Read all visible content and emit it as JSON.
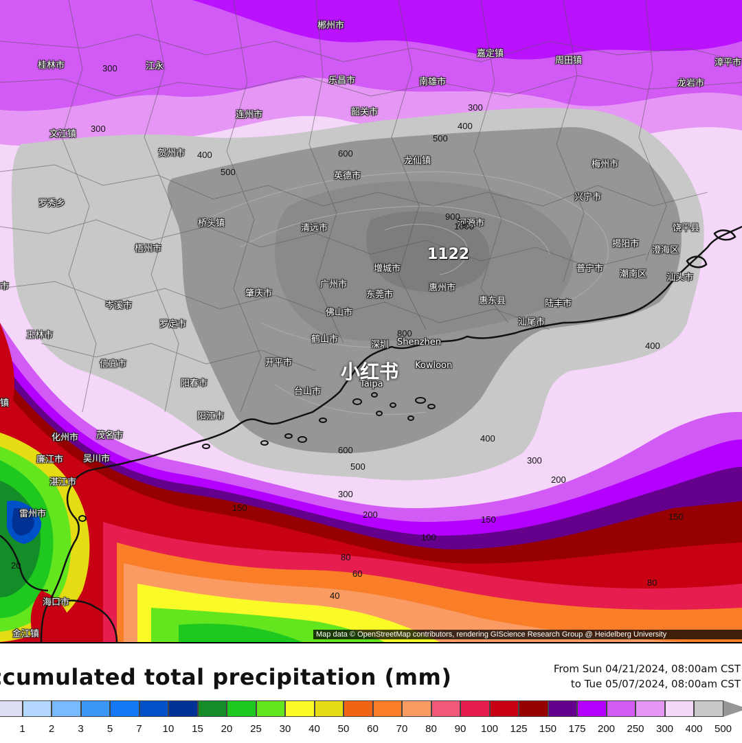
{
  "map": {
    "max_value_label": "1122",
    "watermark": "小红书",
    "attribution": "Map data © OpenStreetMap contributors, rendering GIScience Research Group @ Heidelberg University",
    "cities": [
      {
        "id": "c01",
        "name": "郴州市"
      },
      {
        "id": "c02",
        "name": "桂林市"
      },
      {
        "id": "c03",
        "name": "江永"
      },
      {
        "id": "c04",
        "name": "乐昌市"
      },
      {
        "id": "c05",
        "name": "南雄市"
      },
      {
        "id": "c06",
        "name": "嘉定镇"
      },
      {
        "id": "c07",
        "name": "周田镇"
      },
      {
        "id": "c08",
        "name": "龙岩市"
      },
      {
        "id": "c09",
        "name": "漳平市"
      },
      {
        "id": "c10",
        "name": "连州市"
      },
      {
        "id": "c11",
        "name": "韶关市"
      },
      {
        "id": "c12",
        "name": "文江镇"
      },
      {
        "id": "c13",
        "name": "贺州市"
      },
      {
        "id": "c14",
        "name": "英德市"
      },
      {
        "id": "c15",
        "name": "龙仙镇"
      },
      {
        "id": "c16",
        "name": "梅州市"
      },
      {
        "id": "c17",
        "name": "兴宁市"
      },
      {
        "id": "c18",
        "name": "罗秀乡"
      },
      {
        "id": "c19",
        "name": "桥头镇"
      },
      {
        "id": "c20",
        "name": "清远市"
      },
      {
        "id": "c21",
        "name": "河源市"
      },
      {
        "id": "c22",
        "name": "揭阳市"
      },
      {
        "id": "c23",
        "name": "澄海区"
      },
      {
        "id": "c24",
        "name": "饶平县"
      },
      {
        "id": "c25",
        "name": "梧州市"
      },
      {
        "id": "c26",
        "name": "增城市"
      },
      {
        "id": "c27",
        "name": "普宁市"
      },
      {
        "id": "c28",
        "name": "潮南区"
      },
      {
        "id": "c29",
        "name": "汕头市"
      },
      {
        "id": "c30",
        "name": "广州市"
      },
      {
        "id": "c31",
        "name": "肇庆市"
      },
      {
        "id": "c32",
        "name": "东莞市"
      },
      {
        "id": "c33",
        "name": "惠州市"
      },
      {
        "id": "c34",
        "name": "惠东县"
      },
      {
        "id": "c35",
        "name": "岑溪市"
      },
      {
        "id": "c36",
        "name": "佛山市"
      },
      {
        "id": "c37",
        "name": "陆丰市"
      },
      {
        "id": "c38",
        "name": "罗定市"
      },
      {
        "id": "c39",
        "name": "汕尾市"
      },
      {
        "id": "c40",
        "name": "玉林市"
      },
      {
        "id": "c41",
        "name": "鹤山市"
      },
      {
        "id": "c42",
        "name": "深圳"
      },
      {
        "id": "c43",
        "name": "Shenzhen"
      },
      {
        "id": "c44",
        "name": "开平市"
      },
      {
        "id": "c45",
        "name": "信宜市"
      },
      {
        "id": "c46",
        "name": "Kowloon"
      },
      {
        "id": "c47",
        "name": "阳春市"
      },
      {
        "id": "c48",
        "name": "台山市"
      },
      {
        "id": "c49",
        "name": "Taipa"
      },
      {
        "id": "c50",
        "name": "阳江市"
      },
      {
        "id": "c51",
        "name": "化州市"
      },
      {
        "id": "c52",
        "name": "茂名市"
      },
      {
        "id": "c53",
        "name": "廉江市"
      },
      {
        "id": "c54",
        "name": "吴川市"
      },
      {
        "id": "c55",
        "name": "湛江市"
      },
      {
        "id": "c56",
        "name": "雷州市"
      },
      {
        "id": "c57",
        "name": "海口市"
      },
      {
        "id": "c58",
        "name": "金江镇"
      },
      {
        "id": "c59",
        "name": "镇"
      },
      {
        "id": "c60",
        "name": "市"
      }
    ],
    "contour_labels": [
      {
        "id": "k01",
        "value": "300"
      },
      {
        "id": "k02",
        "value": "300"
      },
      {
        "id": "k03",
        "value": "300"
      },
      {
        "id": "k04",
        "value": "400"
      },
      {
        "id": "k05",
        "value": "400"
      },
      {
        "id": "k06",
        "value": "500"
      },
      {
        "id": "k07",
        "value": "500"
      },
      {
        "id": "k08",
        "value": "600"
      },
      {
        "id": "k09",
        "value": "900"
      },
      {
        "id": "k10",
        "value": "1000"
      },
      {
        "id": "k11",
        "value": "800"
      },
      {
        "id": "k12",
        "value": "400"
      },
      {
        "id": "k13",
        "value": "600"
      },
      {
        "id": "k14",
        "value": "500"
      },
      {
        "id": "k15",
        "value": "400"
      },
      {
        "id": "k16",
        "value": "300"
      },
      {
        "id": "k17",
        "value": "300"
      },
      {
        "id": "k18",
        "value": "200"
      },
      {
        "id": "k19",
        "value": "200"
      },
      {
        "id": "k20",
        "value": "150"
      },
      {
        "id": "k21",
        "value": "150"
      },
      {
        "id": "k22",
        "value": "150"
      },
      {
        "id": "k23",
        "value": "100"
      },
      {
        "id": "k24",
        "value": "80"
      },
      {
        "id": "k25",
        "value": "60"
      },
      {
        "id": "k26",
        "value": "40"
      },
      {
        "id": "k27",
        "value": "80"
      },
      {
        "id": "k28",
        "value": "20"
      }
    ]
  },
  "legend": {
    "title": "ccumulated total precipitation (mm)",
    "period_line1": "From Sun 04/21/2024, 08:00am CST",
    "period_line2": "to Tue 05/07/2024, 08:00am CST",
    "ticks": [
      "1",
      "2",
      "3",
      "5",
      "7",
      "10",
      "15",
      "20",
      "25",
      "30",
      "40",
      "50",
      "60",
      "70",
      "80",
      "90",
      "100",
      "125",
      "150",
      "175",
      "200",
      "250",
      "300",
      "400",
      "500"
    ],
    "colors": [
      "#dcdcf5",
      "#b4d7ff",
      "#78b9ff",
      "#3c96f5",
      "#1478f5",
      "#0050c8",
      "#003296",
      "#148c28",
      "#1ec81e",
      "#64e61e",
      "#fafa28",
      "#e6dc14",
      "#f06414",
      "#fa7d28",
      "#fa9b64",
      "#f05a78",
      "#e61e50",
      "#c80014",
      "#960000",
      "#64008c",
      "#b400ff",
      "#d25af5",
      "#e696f5",
      "#f5d7fa",
      "#c8c8c8",
      "#969696"
    ]
  }
}
